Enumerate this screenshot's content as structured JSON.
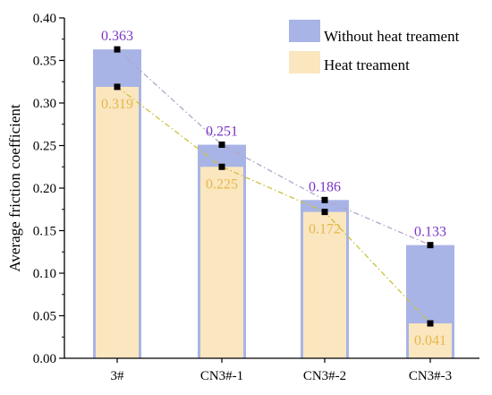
{
  "chart_data": {
    "type": "bar",
    "categories": [
      "3#",
      "CN3#-1",
      "CN3#-2",
      "CN3#-3"
    ],
    "series": [
      {
        "name": "Without heat treament",
        "values": [
          0.363,
          0.251,
          0.186,
          0.133
        ],
        "color": "#A8B4E6",
        "label_color": "#7B35C9",
        "line_color": "#B0A6C8"
      },
      {
        "name": "Heat treament",
        "values": [
          0.319,
          0.225,
          0.172,
          0.041
        ],
        "color": "#FAE6BF",
        "label_color": "#E6B84A",
        "line_color": "#C9C23A"
      }
    ],
    "data_labels": {
      "without": [
        "0.363",
        "0.251",
        "0.186",
        "0.133"
      ],
      "heat": [
        "0.319",
        "0.225",
        "0.172",
        "0.041"
      ]
    },
    "ylabel": "Average friction coefficient",
    "xlabel": "",
    "ylim": [
      0,
      0.4
    ],
    "yticks": [
      "0.00",
      "0.05",
      "0.10",
      "0.15",
      "0.20",
      "0.25",
      "0.30",
      "0.35",
      "0.40"
    ],
    "legend_position": "top-right",
    "grid": false,
    "marker_color": "#000000"
  }
}
